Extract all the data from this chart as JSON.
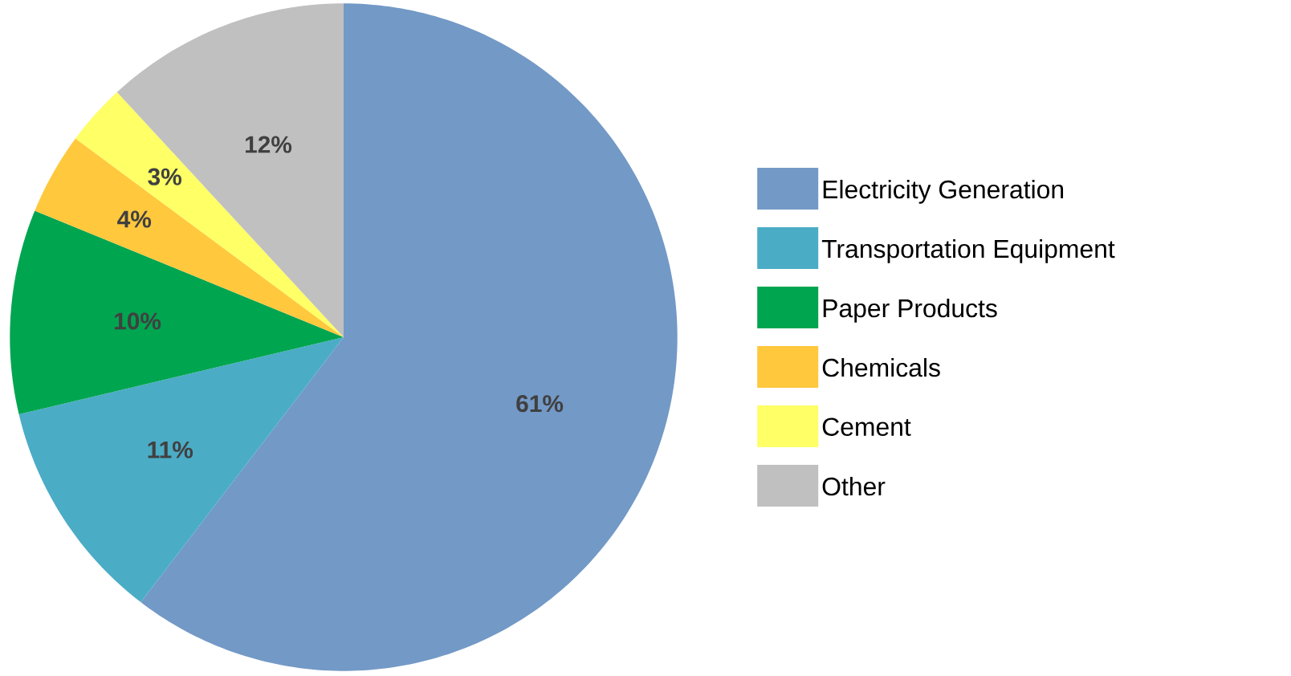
{
  "chart_data": {
    "type": "pie",
    "categories": [
      "Electricity Generation",
      "Transportation Equipment",
      "Paper Products",
      "Chemicals",
      "Cement",
      "Other"
    ],
    "values": [
      61,
      11,
      10,
      4,
      3,
      12
    ],
    "value_labels": [
      "61%",
      "11%",
      "10%",
      "4%",
      "3%",
      "12%"
    ],
    "colors": [
      "#7399c6",
      "#4bacc6",
      "#00a550",
      "#ffc83d",
      "#ffff66",
      "#c0c0c0"
    ],
    "legend": "right"
  }
}
